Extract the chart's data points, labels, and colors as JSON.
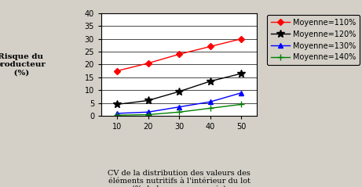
{
  "x": [
    10,
    20,
    30,
    40,
    50
  ],
  "series": [
    {
      "label": "Moyenne=110%",
      "color": "red",
      "marker": "D",
      "markersize": 4,
      "values": [
        17.5,
        20.5,
        24,
        27,
        30
      ]
    },
    {
      "label": "Moyenne=120%",
      "color": "black",
      "marker": "*",
      "markersize": 7,
      "values": [
        4.5,
        6.0,
        9.5,
        13.5,
        16.5
      ]
    },
    {
      "label": "Moyenne=130%",
      "color": "blue",
      "marker": "^",
      "markersize": 4,
      "values": [
        1.0,
        1.5,
        3.5,
        5.5,
        9.0
      ]
    },
    {
      "label": "Moyenne=140%",
      "color": "green",
      "marker": "+",
      "markersize": 6,
      "values": [
        0.3,
        0.5,
        1.5,
        3.0,
        4.5
      ]
    }
  ],
  "xlabel_lines": [
    "CV de la distribution des valeurs des",
    "éléments nutritifs à l'intérieur du lot",
    "(% de la moyenne vraie)"
  ],
  "ylabel_lines": [
    "Risque du",
    "producteur",
    " (%)"
  ],
  "xlim": [
    5,
    55
  ],
  "ylim": [
    0,
    40
  ],
  "yticks": [
    0,
    5,
    10,
    15,
    20,
    25,
    30,
    35,
    40
  ],
  "xticks": [
    10,
    20,
    30,
    40,
    50
  ],
  "bg_color": "#d4d0c8",
  "plot_bg_color": "#ffffff",
  "fig_width": 4.61,
  "fig_height": 2.39,
  "dpi": 100
}
